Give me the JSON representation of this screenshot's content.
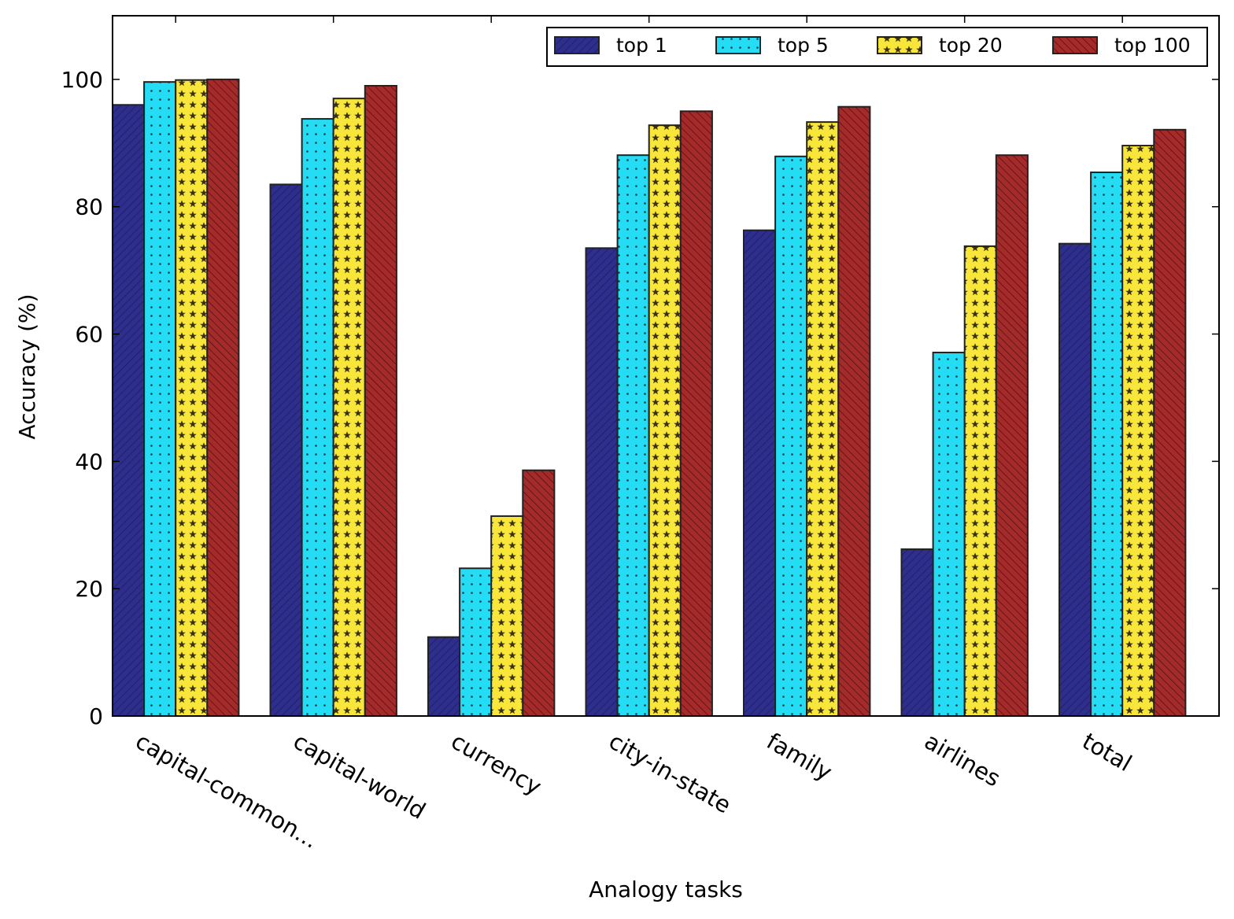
{
  "chart_data": {
    "type": "bar",
    "title": "",
    "xlabel": "Analogy tasks",
    "ylabel": "Accuracy (%)",
    "ylim": [
      0,
      110
    ],
    "yticks": [
      0,
      20,
      40,
      60,
      80,
      100
    ],
    "grid": false,
    "legend_position": "top-right",
    "categories": [
      "capital-common...",
      "capital-world",
      "currency",
      "city-in-state",
      "family",
      "airlines",
      "total"
    ],
    "series": [
      {
        "name": "top 1",
        "color": "#2e2e8c",
        "pattern": "hatch-diagonal",
        "values": [
          96.0,
          83.5,
          12.4,
          73.5,
          76.3,
          26.2,
          74.2
        ]
      },
      {
        "name": "top 5",
        "color": "#24dcf4",
        "pattern": "dots",
        "values": [
          99.6,
          93.8,
          23.2,
          88.1,
          87.9,
          57.1,
          85.4
        ]
      },
      {
        "name": "top 20",
        "color": "#f9e63a",
        "pattern": "stars",
        "values": [
          99.9,
          97.0,
          31.4,
          92.8,
          93.3,
          73.8,
          89.6
        ]
      },
      {
        "name": "top 100",
        "color": "#a52a2a",
        "pattern": "hatch-backdiagonal",
        "values": [
          100.0,
          99.0,
          38.6,
          95.0,
          95.7,
          88.1,
          92.1
        ]
      }
    ]
  }
}
